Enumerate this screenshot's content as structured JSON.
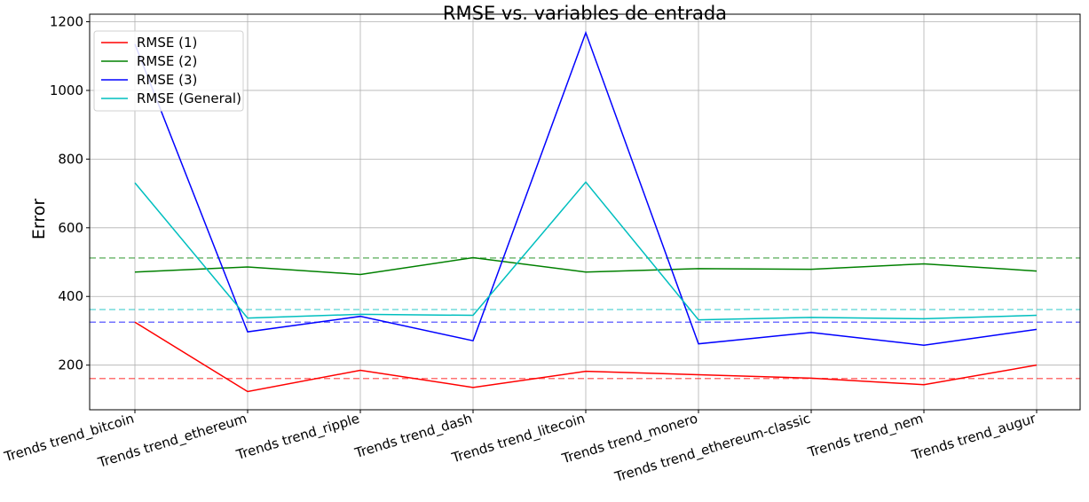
{
  "chart_data": {
    "type": "line",
    "title": "RMSE vs. variables de entrada",
    "xlabel": "",
    "ylabel": "Error",
    "categories": [
      "Trends trend_bitcoin",
      "Trends trend_ethereum",
      "Trends trend_ripple",
      "Trends trend_dash",
      "Trends trend_litecoin",
      "Trends trend_monero",
      "Trends trend_ethereum-classic",
      "Trends trend_nem",
      "Trends trend_augur"
    ],
    "yticks": [
      200,
      400,
      600,
      800,
      1000,
      1200
    ],
    "ylim": [
      70,
      1222
    ],
    "grid": true,
    "legend_position": "top-left",
    "series": [
      {
        "name": "RMSE (1)",
        "color": "#ff0000",
        "values": [
          325,
          123,
          185,
          135,
          182,
          172,
          162,
          143,
          200
        ]
      },
      {
        "name": "RMSE (2)",
        "color": "#008000",
        "values": [
          471,
          486,
          464,
          513,
          471,
          481,
          479,
          495,
          474
        ]
      },
      {
        "name": "RMSE (3)",
        "color": "#0000ff",
        "values": [
          1135,
          297,
          342,
          271,
          1168,
          262,
          295,
          258,
          304
        ]
      },
      {
        "name": "RMSE (General)",
        "color": "#00bfbf",
        "values": [
          731,
          337,
          348,
          345,
          733,
          332,
          339,
          335,
          345
        ]
      }
    ],
    "reference_lines": [
      {
        "color": "#ff0000",
        "value": 161
      },
      {
        "color": "#008000",
        "value": 512
      },
      {
        "color": "#0000ff",
        "value": 325
      },
      {
        "color": "#00bfbf",
        "value": 362
      }
    ]
  }
}
